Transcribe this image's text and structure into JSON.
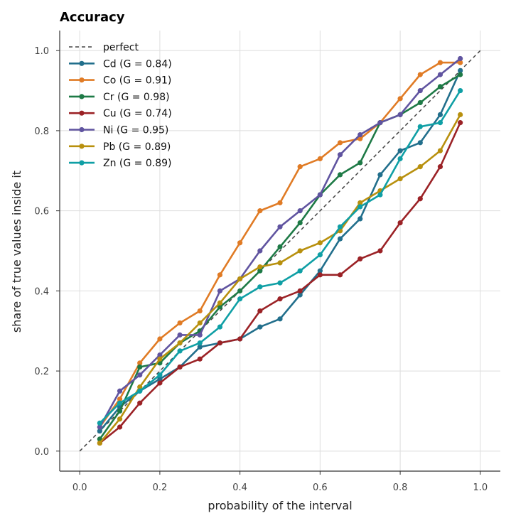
{
  "chart_data": {
    "type": "line",
    "title": "Accuracy",
    "xlabel": "probability of the interval",
    "ylabel": "share of true values inside it",
    "xlim": [
      -0.05,
      1.05
    ],
    "ylim": [
      -0.05,
      1.05
    ],
    "xticks": [
      "0.0",
      "0.2",
      "0.4",
      "0.6",
      "0.8",
      "1.0"
    ],
    "yticks": [
      "0.0",
      "0.2",
      "0.4",
      "0.6",
      "0.8",
      "1.0"
    ],
    "grid": true,
    "legend_position": "upper-left",
    "reference": {
      "name": "perfect",
      "x": [
        0,
        1
      ],
      "y": [
        0,
        1
      ],
      "color": "#444444",
      "style": "dashed"
    },
    "x": [
      0.05,
      0.1,
      0.15,
      0.2,
      0.25,
      0.3,
      0.35,
      0.4,
      0.45,
      0.5,
      0.55,
      0.6,
      0.65,
      0.7,
      0.75,
      0.8,
      0.85,
      0.9,
      0.95
    ],
    "series": [
      {
        "name": "Cd (G = 0.84)",
        "color": "#226f8c",
        "values": [
          0.05,
          0.11,
          0.15,
          0.18,
          0.21,
          0.26,
          0.27,
          0.28,
          0.31,
          0.33,
          0.39,
          0.45,
          0.53,
          0.58,
          0.69,
          0.75,
          0.77,
          0.84,
          0.95
        ]
      },
      {
        "name": "Co (G = 0.91)",
        "color": "#e07b25",
        "values": [
          0.06,
          0.13,
          0.22,
          0.28,
          0.32,
          0.35,
          0.44,
          0.52,
          0.6,
          0.62,
          0.71,
          0.73,
          0.77,
          0.78,
          0.82,
          0.88,
          0.94,
          0.97,
          0.97
        ]
      },
      {
        "name": "Cr (G = 0.98)",
        "color": "#1e7a46",
        "values": [
          0.03,
          0.1,
          0.21,
          0.22,
          0.27,
          0.3,
          0.36,
          0.4,
          0.45,
          0.51,
          0.57,
          0.64,
          0.69,
          0.72,
          0.82,
          0.84,
          0.87,
          0.91,
          0.94
        ]
      },
      {
        "name": "Cu (G = 0.74)",
        "color": "#9b2226",
        "values": [
          0.02,
          0.06,
          0.12,
          0.17,
          0.21,
          0.23,
          0.27,
          0.28,
          0.35,
          0.38,
          0.4,
          0.44,
          0.44,
          0.48,
          0.5,
          0.57,
          0.63,
          0.71,
          0.82
        ]
      },
      {
        "name": "Ni (G = 0.95)",
        "color": "#6054a0",
        "values": [
          0.06,
          0.15,
          0.19,
          0.24,
          0.29,
          0.29,
          0.4,
          0.43,
          0.5,
          0.56,
          0.6,
          0.64,
          0.74,
          0.79,
          0.82,
          0.84,
          0.9,
          0.94,
          0.98
        ]
      },
      {
        "name": "Pb (G = 0.89)",
        "color": "#b8900e",
        "values": [
          0.02,
          0.08,
          0.16,
          0.23,
          0.27,
          0.32,
          0.37,
          0.43,
          0.46,
          0.47,
          0.5,
          0.52,
          0.55,
          0.62,
          0.65,
          0.68,
          0.71,
          0.75,
          0.84
        ]
      },
      {
        "name": "Zn (G = 0.89)",
        "color": "#0f9fa5",
        "values": [
          0.07,
          0.12,
          0.15,
          0.19,
          0.25,
          0.27,
          0.31,
          0.38,
          0.41,
          0.42,
          0.45,
          0.49,
          0.56,
          0.61,
          0.64,
          0.73,
          0.81,
          0.82,
          0.9
        ]
      }
    ]
  }
}
